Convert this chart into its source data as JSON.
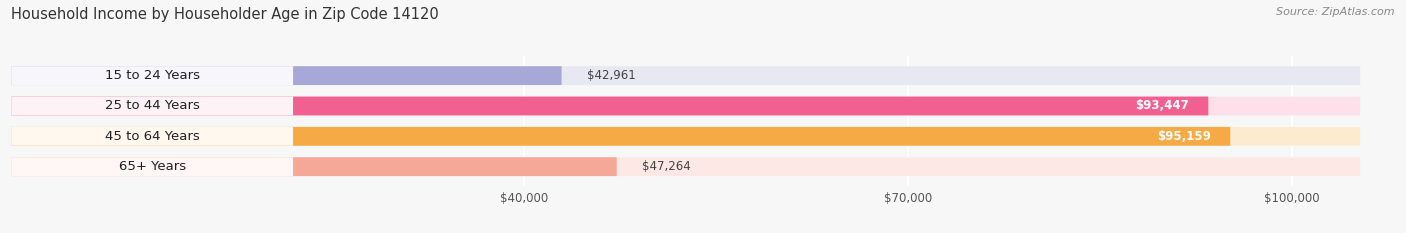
{
  "title": "Household Income by Householder Age in Zip Code 14120",
  "source": "Source: ZipAtlas.com",
  "categories": [
    "15 to 24 Years",
    "25 to 44 Years",
    "45 to 64 Years",
    "65+ Years"
  ],
  "values": [
    42961,
    93447,
    95159,
    47264
  ],
  "bar_colors": [
    "#a8a8d8",
    "#f06090",
    "#f5aa45",
    "#f5a898"
  ],
  "bg_colors": [
    "#e8e8f2",
    "#fde0ea",
    "#fdebd0",
    "#fde8e5"
  ],
  "value_labels": [
    "$42,961",
    "$93,447",
    "$95,159",
    "$47,264"
  ],
  "x_ticks": [
    40000,
    70000,
    100000
  ],
  "x_tick_labels": [
    "$40,000",
    "$70,000",
    "$100,000"
  ],
  "xlim_min": 0,
  "xlim_max": 108000,
  "bar_height": 0.62,
  "background_color": "#f7f7f7",
  "title_fontsize": 10.5,
  "source_fontsize": 8.0,
  "label_fontsize": 9.5,
  "value_fontsize": 8.5,
  "tick_fontsize": 8.5
}
